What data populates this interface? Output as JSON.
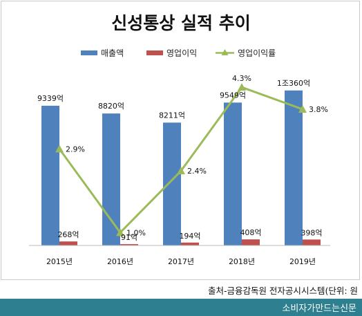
{
  "chart_data": {
    "type": "bar",
    "title": "신성통상 실적 추이",
    "categories": [
      "2015년",
      "2016년",
      "2017년",
      "2018년",
      "2019년"
    ],
    "series": [
      {
        "name": "매출액",
        "type": "bar",
        "color": "#4f81bd",
        "values": [
          9339,
          8820,
          8211,
          9549,
          10360
        ],
        "labels": [
          "9339억",
          "8820억",
          "8211억",
          "9549억",
          "1조360억"
        ]
      },
      {
        "name": "영업이익",
        "type": "bar",
        "color": "#c0504d",
        "values": [
          268,
          91,
          194,
          408,
          398
        ],
        "labels": [
          "268억",
          "91억",
          "194억",
          "408억",
          "398억"
        ]
      },
      {
        "name": "영업이익률",
        "type": "line",
        "color": "#9bbb59",
        "marker": "triangle",
        "values": [
          2.9,
          1.0,
          2.4,
          4.3,
          3.8
        ],
        "labels": [
          "2.9%",
          "1.0%",
          "2.4%",
          "4.3%",
          "3.8%"
        ]
      }
    ],
    "legend_position": "top",
    "grid": false
  },
  "source_note": "출처-금융감독원 전자공시시스템(단위: 원",
  "footer_brand": "소비자가만드는신문"
}
